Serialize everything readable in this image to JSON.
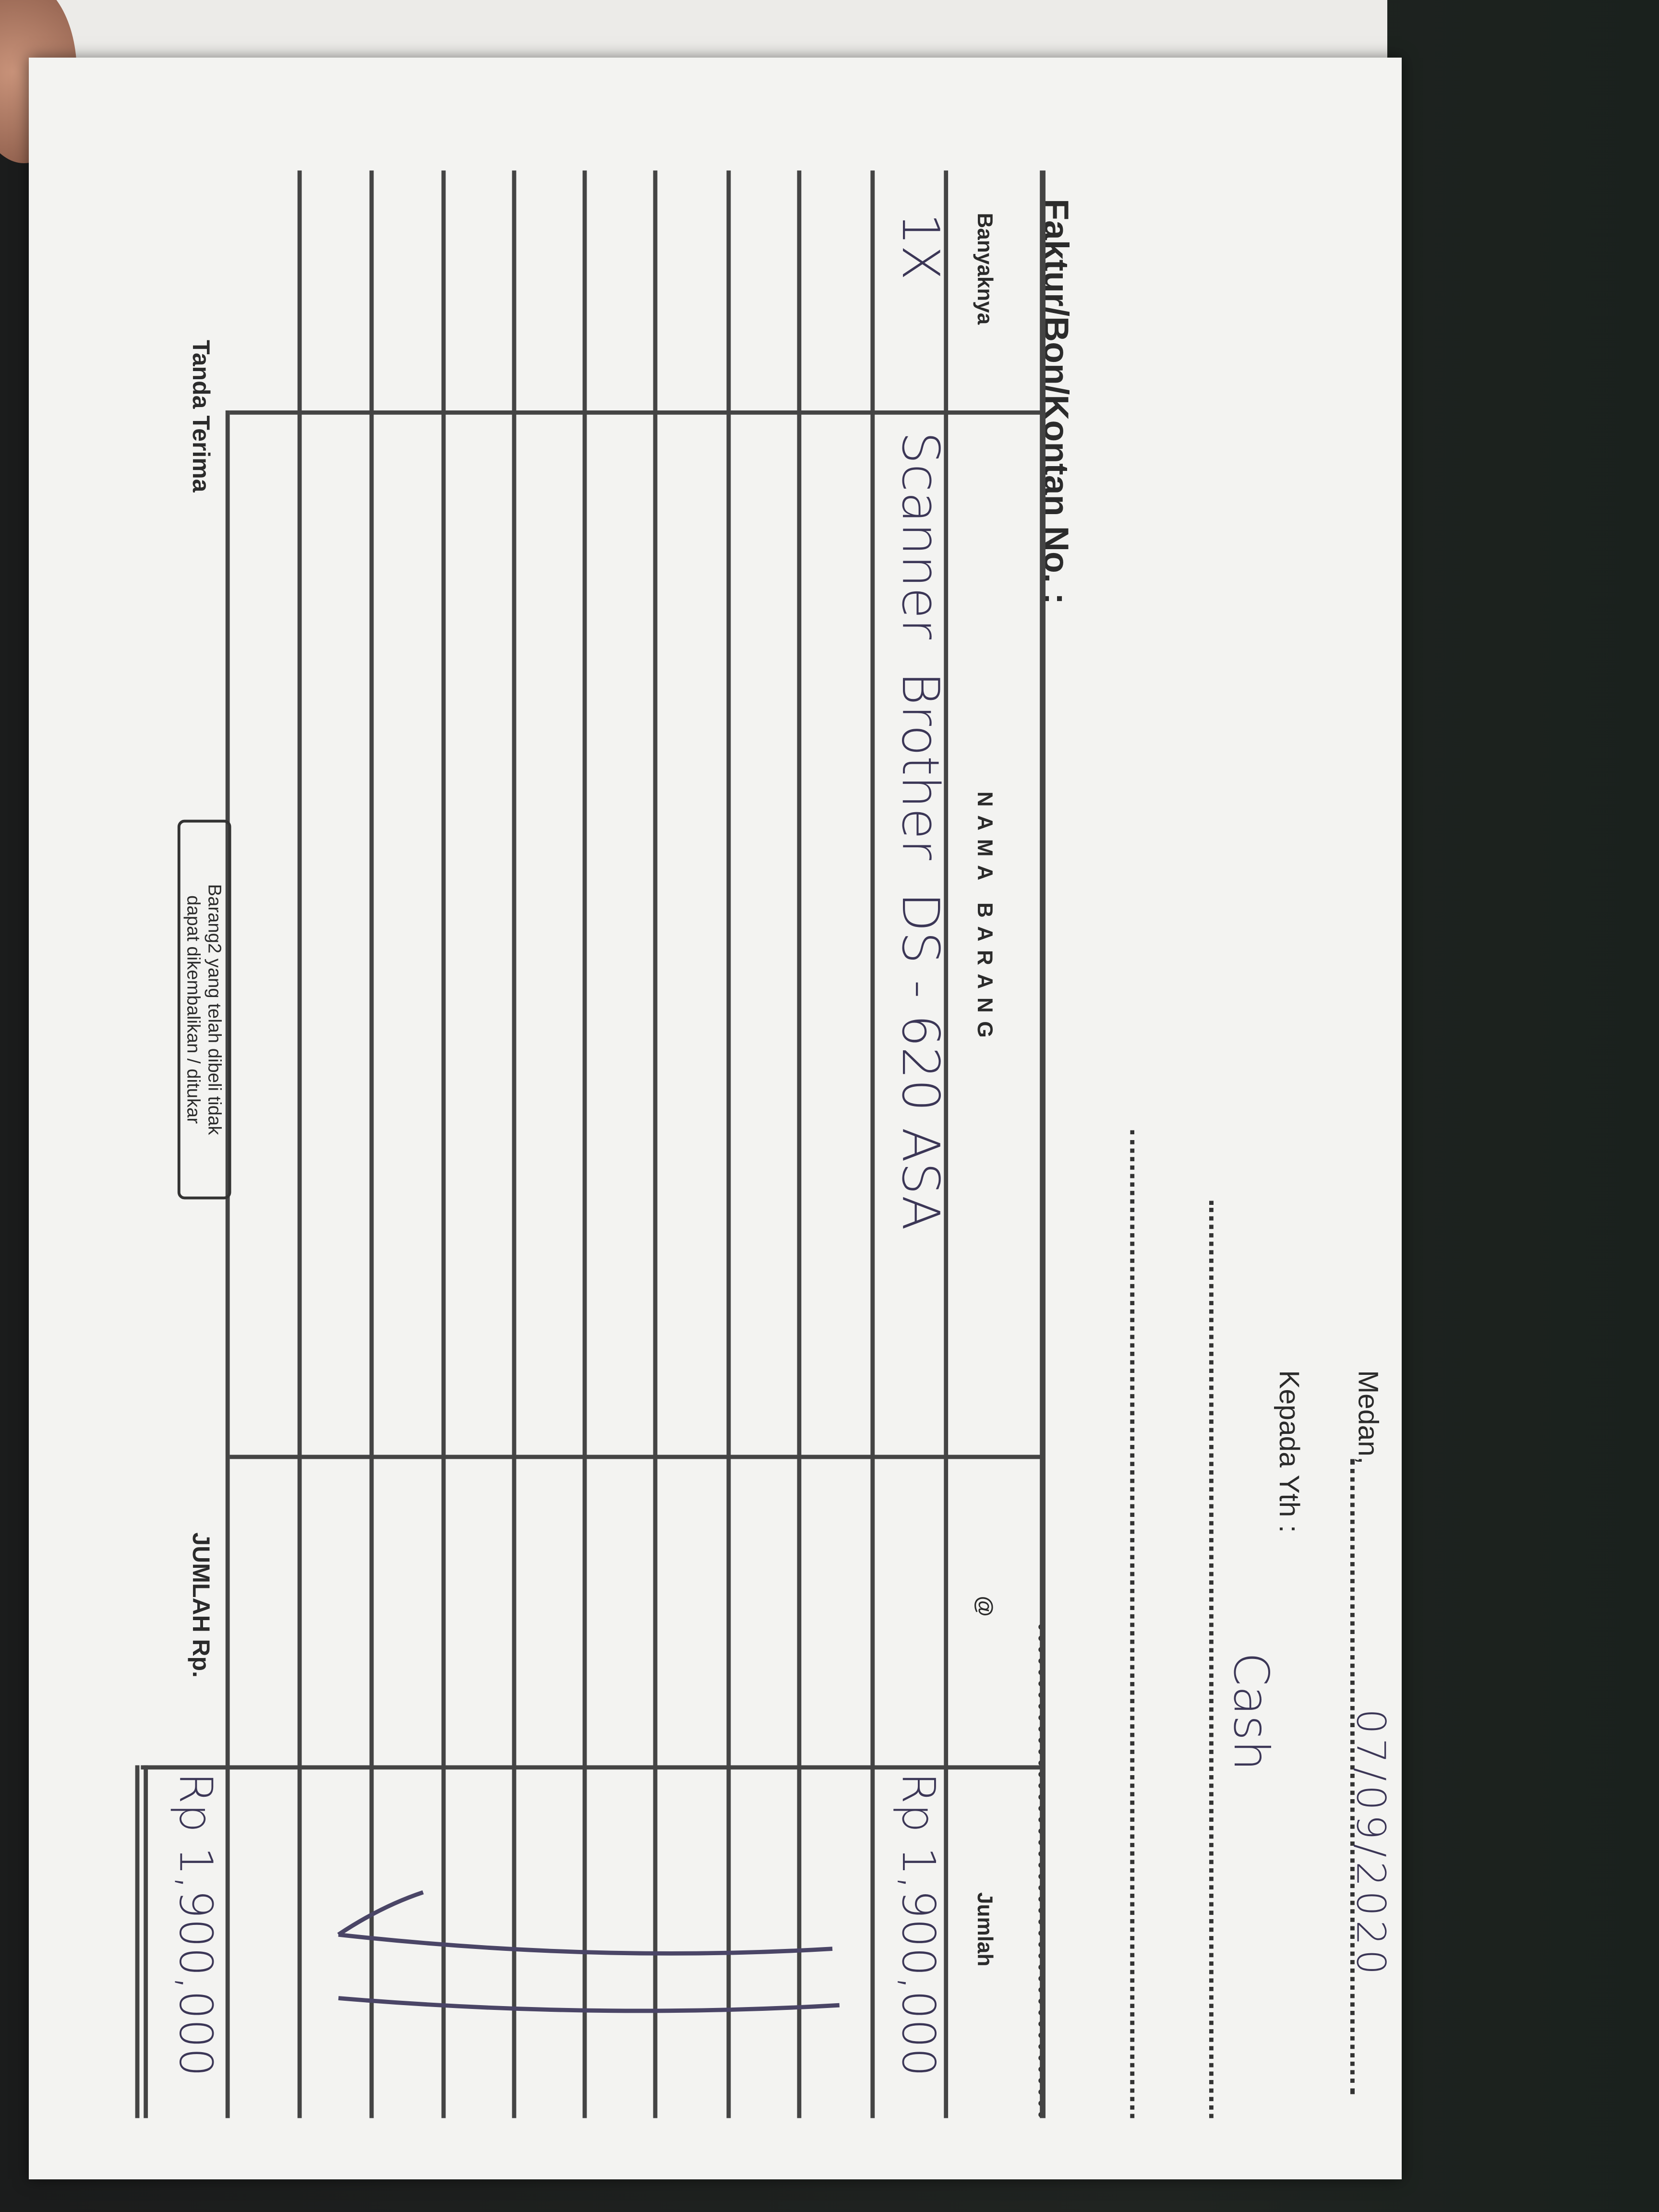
{
  "form": {
    "title": "Faktur/Bon/Kontan No. :",
    "city_label": "Medan,",
    "date": "07/09/2020",
    "recipient_label": "Kepada Yth :",
    "recipient": "Cash",
    "columns": [
      "Banyaknya",
      "NAMA BARANG",
      "@",
      "Jumlah"
    ],
    "rows": [
      {
        "qty": "1X",
        "item": "Scanner  Brother  DS - 620 ASA",
        "price": "",
        "amount": "Rp 1,900,000"
      }
    ],
    "total_label": "JUMLAH Rp.",
    "total": "Rp 1,900,000",
    "signature_label": "Tanda Terima",
    "notice_line1": "Barang2 yang telah dibeli tidak",
    "notice_line2": "dapat dikembalikan / ditukar"
  },
  "colors": {
    "ink": "#3b3656",
    "paper": "#f3f3f1",
    "background": "#1e2220"
  }
}
